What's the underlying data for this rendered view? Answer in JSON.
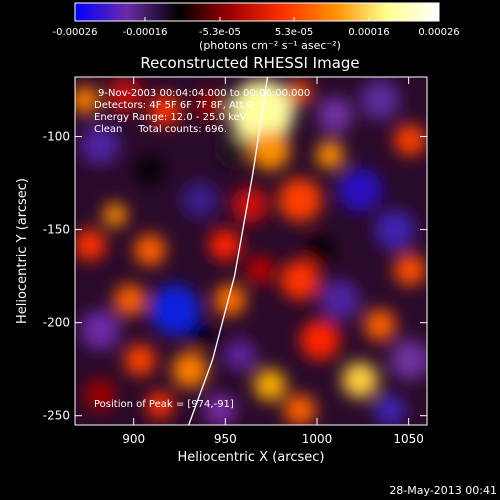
{
  "chart_data": {
    "type": "heatmap",
    "title": "Reconstructed RHESSI Image",
    "xlabel": "Heliocentric X (arcsec)",
    "ylabel": "Heliocentric Y (arcsec)",
    "xlim": [
      868,
      1060
    ],
    "ylim": [
      -255,
      -68
    ],
    "x_ticks": [
      900,
      950,
      1000,
      1050
    ],
    "y_ticks": [
      -100,
      -150,
      -200,
      -250
    ],
    "colorbar": {
      "tick_labels": [
        "-0.00026",
        "-0.00016",
        "-5.3e-05",
        "5.3e-05",
        "0.00016",
        "0.00026"
      ],
      "tick_values": [
        -0.00026,
        -0.00016,
        -5.3e-05,
        5.3e-05,
        0.00016,
        0.00026
      ],
      "range": [
        -0.00026,
        0.00026
      ],
      "unit_label": "(photons cm⁻² s⁻¹ asec⁻²)",
      "colormap": [
        "#0000ff",
        "#6a2aa6",
        "#000000",
        "#a00000",
        "#ff3000",
        "#ff9000",
        "#ffff90",
        "#ffffff"
      ]
    },
    "annotations": {
      "time_range": "9-Nov-2003 00:04:04.000 to 00:06:00.000",
      "detectors": "Detectors: 4F 5F 6F 7F 8F, Att 0",
      "energy_range": "Energy Range: 12.0 - 25.0 keV",
      "method": "Clean     Total counts: 696.",
      "peak": "Position of Peak = [974,-91]"
    },
    "limb": [
      [
        973,
        -68
      ],
      [
        965,
        -120
      ],
      [
        955,
        -175
      ],
      [
        943,
        -220
      ],
      [
        930,
        -255
      ]
    ],
    "peak": [
      974,
      -91
    ]
  },
  "footer": {
    "timestamp": "28-May-2013 00:41"
  }
}
